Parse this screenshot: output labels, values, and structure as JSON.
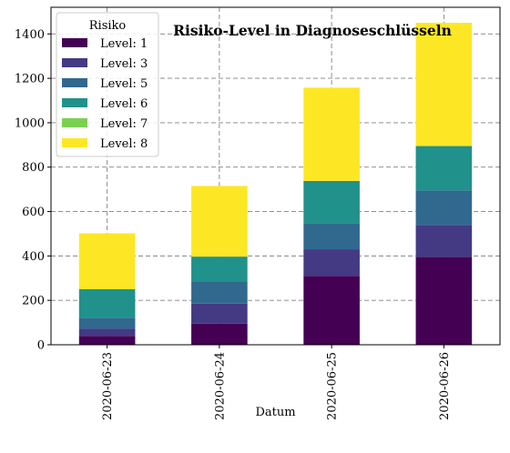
{
  "chart_data": {
    "type": "bar",
    "stacked": true,
    "title": "Risiko-Level in Diagnoseschlüsseln",
    "xlabel": "Datum",
    "ylabel": "",
    "categories": [
      "2020-06-23",
      "2020-06-24",
      "2020-06-25",
      "2020-06-26"
    ],
    "ylim": [
      0,
      1520
    ],
    "yticks": [
      0,
      200,
      400,
      600,
      800,
      1000,
      1200,
      1400
    ],
    "grid": true,
    "legend": {
      "title": "Risiko",
      "placement": "top-left"
    },
    "series": [
      {
        "name": "Level: 1",
        "color": "#440154",
        "values": [
          40,
          95,
          310,
          395
        ]
      },
      {
        "name": "Level: 3",
        "color": "#443983",
        "values": [
          32,
          90,
          120,
          145
        ]
      },
      {
        "name": "Level: 5",
        "color": "#31688e",
        "values": [
          50,
          100,
          118,
          155
        ]
      },
      {
        "name": "Level: 6",
        "color": "#21918c",
        "values": [
          128,
          112,
          190,
          200
        ]
      },
      {
        "name": "Level: 7",
        "color": "#7ad151",
        "values": [
          0,
          0,
          0,
          0
        ]
      },
      {
        "name": "Level: 8",
        "color": "#fde725",
        "values": [
          252,
          318,
          420,
          555
        ]
      }
    ]
  }
}
